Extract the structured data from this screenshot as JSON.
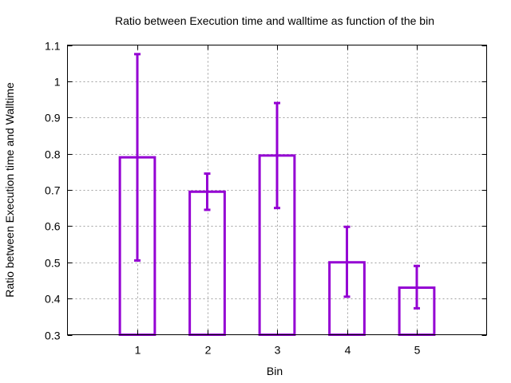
{
  "chart_data": {
    "type": "bar",
    "title": "Ratio between Execution time and walltime as function of the bin",
    "xlabel": "Bin",
    "ylabel": "Ratio between Execution time and Walltime",
    "categories": [
      "1",
      "2",
      "3",
      "4",
      "5"
    ],
    "x": [
      1,
      2,
      3,
      4,
      5
    ],
    "values": [
      0.79,
      0.695,
      0.795,
      0.5,
      0.43
    ],
    "error_low": [
      0.505,
      0.645,
      0.65,
      0.405,
      0.373
    ],
    "error_high": [
      1.075,
      0.745,
      0.94,
      0.598,
      0.49
    ],
    "xlim": [
      0,
      6
    ],
    "ylim": [
      0.3,
      1.1
    ],
    "xticks": [
      "1",
      "2",
      "3",
      "4",
      "5"
    ],
    "yticks": [
      "0.3",
      "0.4",
      "0.5",
      "0.6",
      "0.7",
      "0.8",
      "0.9",
      "1",
      "1.1"
    ],
    "grid": true,
    "bar_style": "outline",
    "color": "#9400d3"
  }
}
